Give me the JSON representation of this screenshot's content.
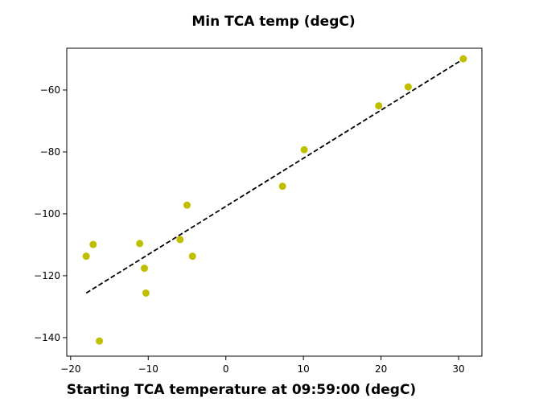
{
  "chart_data": {
    "type": "scatter",
    "title": "Min TCA temp (degC)",
    "xlabel": "Starting TCA temperature at 09:59:00 (degC)",
    "ylabel": "",
    "xlim": [
      -20.5,
      33
    ],
    "ylim": [
      -146,
      -46.5
    ],
    "xticks": [
      -20,
      -10,
      0,
      10,
      20,
      30
    ],
    "yticks": [
      -140,
      -120,
      -100,
      -80,
      -60
    ],
    "xtick_labels": [
      "−20",
      "−10",
      "0",
      "10",
      "20",
      "30"
    ],
    "ytick_labels": [
      "−140",
      "−120",
      "−100",
      "−80",
      "−60"
    ],
    "grid": false,
    "series": [
      {
        "kind": "scatter",
        "color": "#bfbf00",
        "x": [
          -18.0,
          -17.1,
          -16.3,
          -11.1,
          -10.5,
          -10.3,
          -5.9,
          -5.0,
          -4.3,
          7.3,
          10.1,
          19.7,
          23.5,
          30.6
        ],
        "y": [
          -113.7,
          -109.9,
          -141.1,
          -109.6,
          -117.6,
          -125.6,
          -108.3,
          -97.2,
          -113.7,
          -91.1,
          -79.3,
          -65.1,
          -59.0,
          -49.9
        ]
      },
      {
        "kind": "fit-line",
        "color": "#000000",
        "style": "dashed",
        "x": [
          -18.0,
          30.6
        ],
        "y": [
          -125.6,
          -50.0
        ]
      }
    ]
  }
}
